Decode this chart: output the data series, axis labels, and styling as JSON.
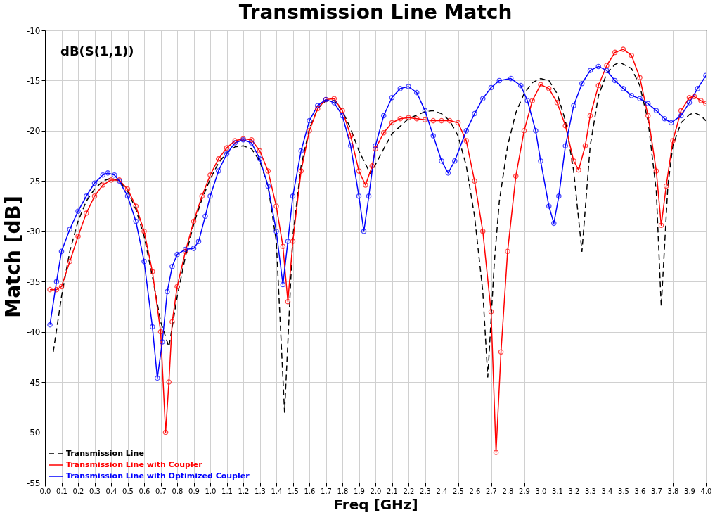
{
  "chart_data": {
    "type": "line",
    "title": "Transmission Line Match",
    "xlabel": "Freq [GHz]",
    "ylabel": "Match [dB]",
    "annotations": [
      "dB(S(1,1))"
    ],
    "xlim": [
      0,
      4
    ],
    "ylim": [
      -55,
      -10
    ],
    "xticks": [
      {
        "value": 0,
        "label": "0.0"
      },
      0.1,
      0.2,
      0.3,
      0.4,
      0.5,
      0.6,
      0.7,
      0.8,
      0.9,
      {
        "value": 1,
        "label": "1.0"
      },
      1.1,
      1.2,
      1.3,
      1.4,
      1.5,
      1.6,
      1.7,
      1.8,
      1.9,
      {
        "value": 2,
        "label": "2.0"
      },
      2.1,
      2.2,
      2.3,
      2.4,
      2.5,
      2.6,
      2.7,
      2.8,
      2.9,
      {
        "value": 3,
        "label": "3.0"
      },
      3.1,
      3.2,
      3.3,
      3.4,
      3.5,
      3.6,
      3.7,
      3.8,
      3.9,
      {
        "value": 4,
        "label": "4.0"
      }
    ],
    "yticks": [
      -55,
      -50,
      -45,
      -40,
      -35,
      -30,
      -25,
      -20,
      -15,
      -10
    ],
    "grid": true,
    "legend": "bottom left",
    "series": [
      {
        "name": "Transmission Line",
        "color": "#000000",
        "line_style": "dashed",
        "marker": "none",
        "x": [
          0.05,
          0.1,
          0.15,
          0.2,
          0.25,
          0.3,
          0.35,
          0.4,
          0.45,
          0.5,
          0.55,
          0.6,
          0.65,
          0.7,
          0.75,
          0.8,
          0.85,
          0.9,
          0.95,
          1.0,
          1.05,
          1.1,
          1.15,
          1.2,
          1.25,
          1.3,
          1.35,
          1.4,
          1.45,
          1.5,
          1.55,
          1.6,
          1.65,
          1.7,
          1.75,
          1.8,
          1.85,
          1.9,
          1.97,
          2.05,
          2.1,
          2.2,
          2.3,
          2.35,
          2.4,
          2.45,
          2.5,
          2.55,
          2.6,
          2.65,
          2.68,
          2.72,
          2.75,
          2.8,
          2.85,
          2.9,
          2.95,
          3.0,
          3.05,
          3.1,
          3.15,
          3.2,
          3.25,
          3.3,
          3.35,
          3.4,
          3.45,
          3.48,
          3.55,
          3.6,
          3.65,
          3.7,
          3.73,
          3.77,
          3.8,
          3.85,
          3.9,
          3.93,
          3.97,
          4.0
        ],
        "values": [
          -42,
          -36.5,
          -32,
          -29,
          -27,
          -25.8,
          -25,
          -24.7,
          -25,
          -26,
          -27.8,
          -30.5,
          -34.5,
          -39,
          -41.5,
          -36.5,
          -32.5,
          -29.3,
          -26.8,
          -24.8,
          -23.2,
          -22.2,
          -21.6,
          -21.5,
          -21.8,
          -23,
          -25.5,
          -31,
          -48,
          -30.5,
          -23.5,
          -19.8,
          -17.8,
          -17,
          -17,
          -18,
          -19.8,
          -22,
          -24.3,
          -21.8,
          -20.3,
          -18.8,
          -18.1,
          -18,
          -18.3,
          -19,
          -20.5,
          -23.5,
          -28.5,
          -36,
          -44.5,
          -33,
          -27,
          -21.5,
          -18.2,
          -16.3,
          -15.2,
          -14.8,
          -15,
          -16.3,
          -19,
          -24,
          -32,
          -21.5,
          -16.5,
          -14.3,
          -13.4,
          -13.2,
          -13.8,
          -15.5,
          -19,
          -26,
          -37.5,
          -25.5,
          -21.5,
          -19.2,
          -18.4,
          -18.2,
          -18.5,
          -19
        ]
      },
      {
        "name": "Transmission Line with Coupler",
        "color": "#ff0000",
        "line_style": "solid",
        "marker": "circle",
        "x": [
          0.03,
          0.07,
          0.1,
          0.15,
          0.2,
          0.25,
          0.3,
          0.35,
          0.4,
          0.45,
          0.5,
          0.55,
          0.6,
          0.65,
          0.7,
          0.73,
          0.75,
          0.77,
          0.8,
          0.85,
          0.9,
          0.95,
          1.0,
          1.05,
          1.1,
          1.15,
          1.2,
          1.25,
          1.3,
          1.35,
          1.4,
          1.44,
          1.47,
          1.5,
          1.55,
          1.6,
          1.65,
          1.7,
          1.75,
          1.8,
          1.85,
          1.9,
          1.94,
          1.98,
          2.0,
          2.05,
          2.1,
          2.15,
          2.2,
          2.25,
          2.3,
          2.35,
          2.4,
          2.45,
          2.5,
          2.55,
          2.6,
          2.65,
          2.7,
          2.73,
          2.76,
          2.8,
          2.85,
          2.9,
          2.95,
          3.0,
          3.05,
          3.1,
          3.15,
          3.2,
          3.23,
          3.27,
          3.3,
          3.35,
          3.4,
          3.45,
          3.5,
          3.55,
          3.6,
          3.65,
          3.7,
          3.73,
          3.76,
          3.8,
          3.85,
          3.9,
          3.93,
          3.97,
          4.0
        ],
        "values": [
          -35.8,
          -35.8,
          -35.5,
          -33,
          -30.5,
          -28.2,
          -26.5,
          -25.4,
          -24.9,
          -24.9,
          -25.8,
          -27.5,
          -30,
          -34,
          -40,
          -50,
          -45,
          -39,
          -35.5,
          -32,
          -29,
          -26.5,
          -24.4,
          -22.8,
          -21.7,
          -21,
          -20.8,
          -20.9,
          -22,
          -24,
          -27.5,
          -31.5,
          -37,
          -31,
          -24,
          -20,
          -17.8,
          -16.9,
          -16.8,
          -18,
          -20.5,
          -24,
          -25.4,
          -23.5,
          -21.8,
          -20.2,
          -19.2,
          -18.8,
          -18.7,
          -18.8,
          -18.9,
          -19,
          -19,
          -19,
          -19.2,
          -21,
          -25,
          -30,
          -38,
          -52,
          -42,
          -32,
          -24.5,
          -20,
          -17,
          -15.4,
          -15.8,
          -17.2,
          -19.5,
          -23,
          -23.9,
          -21.5,
          -18.5,
          -15.5,
          -13.5,
          -12.2,
          -11.9,
          -12.5,
          -14.7,
          -18.5,
          -24,
          -29.4,
          -25.5,
          -21,
          -18,
          -16.7,
          -16.6,
          -17,
          -17.3
        ]
      },
      {
        "name": "Transmission Line with Optimized Coupler",
        "color": "#0000ff",
        "line_style": "solid",
        "marker": "circle",
        "x": [
          0.03,
          0.07,
          0.1,
          0.15,
          0.2,
          0.25,
          0.3,
          0.35,
          0.38,
          0.42,
          0.45,
          0.5,
          0.55,
          0.6,
          0.65,
          0.68,
          0.71,
          0.74,
          0.77,
          0.8,
          0.85,
          0.9,
          0.93,
          0.97,
          1.0,
          1.05,
          1.1,
          1.15,
          1.2,
          1.25,
          1.3,
          1.35,
          1.4,
          1.44,
          1.47,
          1.5,
          1.55,
          1.6,
          1.65,
          1.7,
          1.75,
          1.8,
          1.85,
          1.9,
          1.93,
          1.96,
          2.0,
          2.05,
          2.1,
          2.15,
          2.2,
          2.25,
          2.3,
          2.35,
          2.4,
          2.44,
          2.48,
          2.55,
          2.6,
          2.65,
          2.7,
          2.75,
          2.82,
          2.88,
          2.92,
          2.97,
          3.0,
          3.05,
          3.08,
          3.11,
          3.15,
          3.2,
          3.25,
          3.3,
          3.35,
          3.4,
          3.45,
          3.5,
          3.55,
          3.6,
          3.65,
          3.7,
          3.75,
          3.79,
          3.85,
          3.9,
          3.95,
          4.0
        ],
        "values": [
          -39.3,
          -35,
          -32,
          -29.8,
          -28,
          -26.5,
          -25.2,
          -24.4,
          -24.2,
          -24.4,
          -25,
          -26.5,
          -29,
          -33,
          -39.5,
          -44.6,
          -41,
          -36,
          -33.5,
          -32.3,
          -31.8,
          -31.7,
          -31,
          -28.5,
          -26.5,
          -24,
          -22.3,
          -21.2,
          -20.9,
          -21.2,
          -22.8,
          -25.5,
          -30,
          -35.3,
          -31,
          -26.5,
          -22,
          -19,
          -17.5,
          -16.9,
          -17.2,
          -18.5,
          -21.5,
          -26.5,
          -30,
          -26.5,
          -21.5,
          -18.5,
          -16.7,
          -15.8,
          -15.6,
          -16.2,
          -18,
          -20.5,
          -23,
          -24.2,
          -23,
          -20,
          -18.3,
          -16.8,
          -15.7,
          -15,
          -14.8,
          -15.5,
          -17,
          -20,
          -23,
          -27.5,
          -29.2,
          -26.5,
          -21.5,
          -17.5,
          -15.3,
          -14,
          -13.6,
          -14,
          -15,
          -15.8,
          -16.5,
          -16.8,
          -17.3,
          -18,
          -18.8,
          -19.2,
          -18.5,
          -17.2,
          -15.8,
          -14.5
        ]
      }
    ]
  }
}
